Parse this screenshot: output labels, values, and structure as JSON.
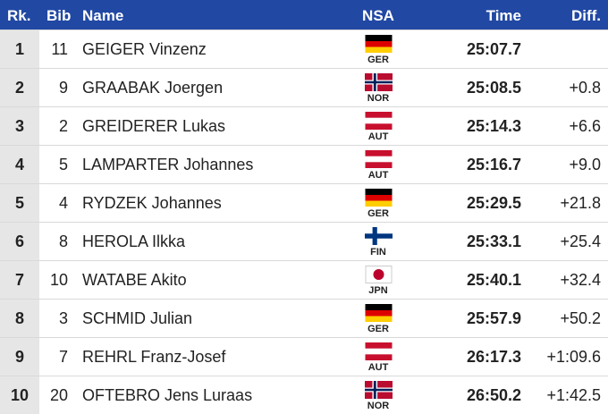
{
  "header": {
    "rank": "Rk.",
    "bib": "Bib",
    "name": "Name",
    "nsa": "NSA",
    "time": "Time",
    "diff": "Diff."
  },
  "rows": [
    {
      "rank": "1",
      "bib": "11",
      "name": "GEIGER Vinzenz",
      "nsa": "GER",
      "time": "25:07.7"
    },
    {
      "rank": "2",
      "bib": "9",
      "name": "GRAABAK Joergen",
      "nsa": "NOR",
      "time": "25:08.5",
      "diff": "+0.8"
    },
    {
      "rank": "3",
      "bib": "2",
      "name": "GREIDERER Lukas",
      "nsa": "AUT",
      "time": "25:14.3",
      "diff": "+6.6"
    },
    {
      "rank": "4",
      "bib": "5",
      "name": "LAMPARTER Johannes",
      "nsa": "AUT",
      "time": "25:16.7",
      "diff": "+9.0"
    },
    {
      "rank": "5",
      "bib": "4",
      "name": "RYDZEK Johannes",
      "nsa": "GER",
      "time": "25:29.5",
      "diff": "+21.8"
    },
    {
      "rank": "6",
      "bib": "8",
      "name": "HEROLA Ilkka",
      "nsa": "FIN",
      "time": "25:33.1",
      "diff": "+25.4"
    },
    {
      "rank": "7",
      "bib": "10",
      "name": "WATABE Akito",
      "nsa": "JPN",
      "time": "25:40.1",
      "diff": "+32.4"
    },
    {
      "rank": "8",
      "bib": "3",
      "name": "SCHMID Julian",
      "nsa": "GER",
      "time": "25:57.9",
      "diff": "+50.2"
    },
    {
      "rank": "9",
      "bib": "7",
      "name": "REHRL Franz-Josef",
      "nsa": "AUT",
      "time": "26:17.3",
      "diff": "+1:09.6"
    },
    {
      "rank": "10",
      "bib": "20",
      "name": "OFTEBRO Jens Luraas",
      "nsa": "NOR",
      "time": "26:50.2",
      "diff": "+1:42.5"
    }
  ]
}
